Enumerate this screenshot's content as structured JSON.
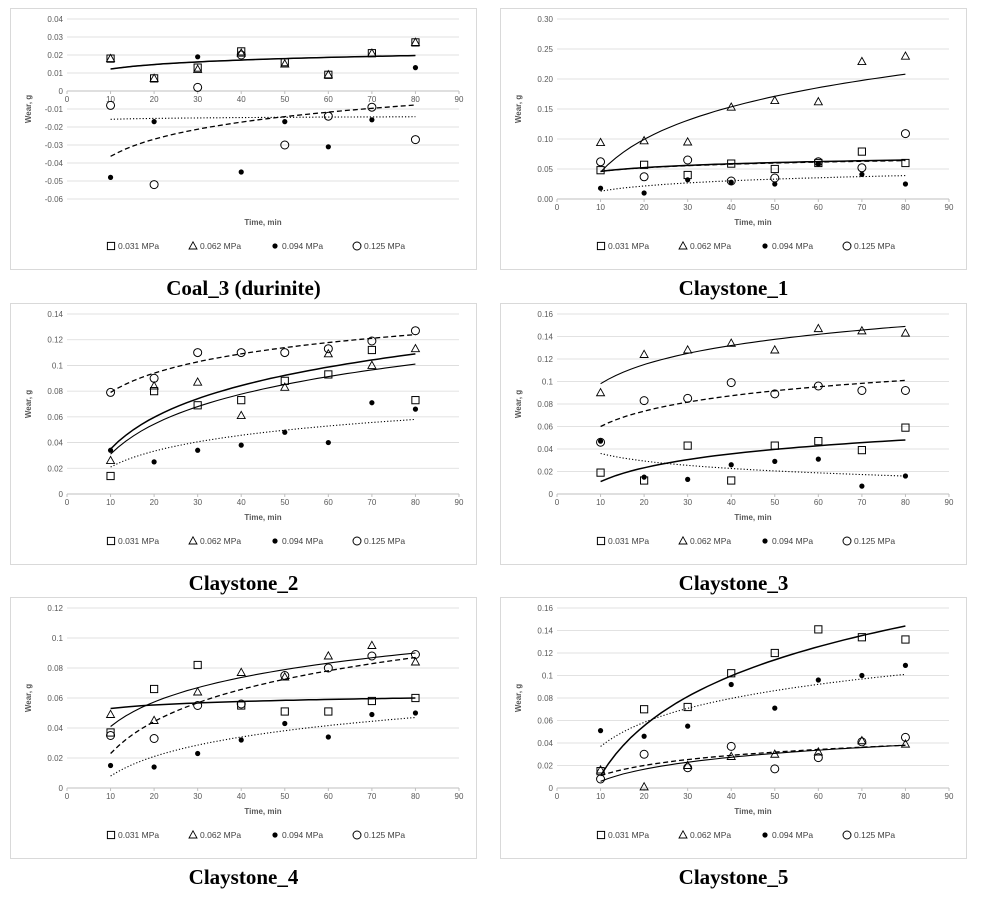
{
  "series_names": [
    "0.031 MPa",
    "0.062 MPa",
    "0.094 MPa",
    "0.125 MPa"
  ],
  "colors": {
    "ink": "#000000",
    "grid": "#d9d9d9",
    "axis": "#bfbfbf",
    "tick": "#595959"
  },
  "chart_data": [
    {
      "type": "scatter",
      "title": "Coal_3 (durinite)",
      "xlabel": "Time, min",
      "ylabel": "Wear, g",
      "xlim": [
        0,
        90
      ],
      "ylim": [
        -0.06,
        0.04
      ],
      "xticks": [
        0,
        10,
        20,
        30,
        40,
        50,
        60,
        70,
        80,
        90
      ],
      "xtick_labels": [
        "0",
        "10",
        "20",
        "30",
        "40",
        "50",
        "60",
        "70",
        "80",
        "90"
      ],
      "yticks": [
        -0.06,
        -0.05,
        -0.04,
        -0.03,
        -0.02,
        -0.01,
        0,
        0.01,
        0.02,
        0.03,
        0.04
      ],
      "ytick_labels": [
        "-0.06",
        "-0.05",
        "-0.04",
        "-0.03",
        "-0.02",
        "-0.01",
        "0",
        "0.01",
        "0.02",
        "0.03",
        "0.04"
      ],
      "x_axis_at": 0,
      "x": [
        10,
        20,
        30,
        40,
        50,
        60,
        70,
        80
      ],
      "series": [
        {
          "name": "0.031 MPa",
          "values": [
            0.018,
            0.007,
            0.013,
            0.022,
            0.016,
            0.009,
            0.021,
            0.027
          ],
          "trend": [
            0.0122,
            0.0197
          ]
        },
        {
          "name": "0.062 MPa",
          "values": [
            0.018,
            0.007,
            0.012,
            0.021,
            0.015,
            0.009,
            0.021,
            0.027
          ],
          "trend": [
            0.0122,
            0.0197
          ]
        },
        {
          "name": "0.094 MPa",
          "values": [
            -0.048,
            -0.017,
            0.019,
            -0.045,
            -0.017,
            -0.031,
            -0.016,
            0.013
          ],
          "trend": [
            -0.0157,
            -0.0143
          ]
        },
        {
          "name": "0.125 MPa",
          "values": [
            -0.008,
            -0.052,
            0.002,
            0.02,
            -0.03,
            -0.014,
            -0.009,
            -0.027
          ],
          "trend": [
            -0.0363,
            -0.0078
          ]
        }
      ]
    },
    {
      "type": "scatter",
      "title": "Claystone_1",
      "xlabel": "Time, min",
      "ylabel": "Wear, g",
      "xlim": [
        0,
        90
      ],
      "ylim": [
        0,
        0.3
      ],
      "xticks": [
        0,
        10,
        20,
        30,
        40,
        50,
        60,
        70,
        80,
        90
      ],
      "xtick_labels": [
        "0",
        "10",
        "20",
        "30",
        "40",
        "50",
        "60",
        "70",
        "80",
        "90"
      ],
      "yticks": [
        0,
        0.05,
        0.1,
        0.15,
        0.2,
        0.25,
        0.3
      ],
      "ytick_labels": [
        "0.00",
        "0.05",
        "0.10",
        "0.15",
        "0.20",
        "0.25",
        "0.30"
      ],
      "x_axis_at": 0,
      "x": [
        10,
        20,
        30,
        40,
        50,
        60,
        70,
        80
      ],
      "series": [
        {
          "name": "0.031 MPa",
          "values": [
            0.048,
            0.057,
            0.04,
            0.059,
            0.05,
            0.06,
            0.079,
            0.06
          ],
          "trend": [
            0.046,
            0.065
          ]
        },
        {
          "name": "0.062 MPa",
          "values": [
            0.094,
            0.097,
            0.095,
            0.153,
            0.164,
            0.162,
            0.229,
            0.238
          ],
          "trend": [
            0.045,
            0.208
          ]
        },
        {
          "name": "0.094 MPa",
          "values": [
            0.018,
            0.01,
            0.032,
            0.028,
            0.025,
            0.059,
            0.041,
            0.025
          ],
          "trend": [
            0.013,
            0.039
          ]
        },
        {
          "name": "0.125 MPa",
          "values": [
            0.062,
            0.037,
            0.065,
            0.03,
            0.035,
            0.062,
            0.052,
            0.109
          ],
          "trend": [
            0.046,
            0.064
          ]
        }
      ]
    },
    {
      "type": "scatter",
      "title": "Claystone_2",
      "xlabel": "Time, min",
      "ylabel": "Wear, g",
      "xlim": [
        0,
        90
      ],
      "ylim": [
        0,
        0.14
      ],
      "xticks": [
        0,
        10,
        20,
        30,
        40,
        50,
        60,
        70,
        80,
        90
      ],
      "xtick_labels": [
        "0",
        "10",
        "20",
        "30",
        "40",
        "50",
        "60",
        "70",
        "80",
        "90"
      ],
      "yticks": [
        0,
        0.02,
        0.04,
        0.06,
        0.08,
        0.1,
        0.12,
        0.14
      ],
      "ytick_labels": [
        "0",
        "0.02",
        "0.04",
        "0.06",
        "0.08",
        "0.1",
        "0.12",
        "0.14"
      ],
      "x_axis_at": 0,
      "x": [
        10,
        20,
        30,
        40,
        50,
        60,
        70,
        80
      ],
      "series": [
        {
          "name": "0.031 MPa",
          "values": [
            0.014,
            0.08,
            0.069,
            0.073,
            0.088,
            0.093,
            0.112,
            0.073
          ],
          "trend": [
            0.035,
            0.109
          ]
        },
        {
          "name": "0.062 MPa",
          "values": [
            0.026,
            0.084,
            0.087,
            0.061,
            0.083,
            0.109,
            0.1,
            0.113
          ],
          "trend": [
            0.031,
            0.101
          ]
        },
        {
          "name": "0.094 MPa",
          "values": [
            0.034,
            0.025,
            0.034,
            0.038,
            0.048,
            0.04,
            0.071,
            0.066
          ],
          "trend": [
            0.021,
            0.058
          ]
        },
        {
          "name": "0.125 MPa",
          "values": [
            0.079,
            0.09,
            0.11,
            0.11,
            0.11,
            0.113,
            0.119,
            0.127
          ],
          "trend": [
            0.079,
            0.124
          ]
        }
      ]
    },
    {
      "type": "scatter",
      "title": "Claystone_3",
      "xlabel": "Time, min",
      "ylabel": "Wear, g",
      "xlim": [
        0,
        90
      ],
      "ylim": [
        0,
        0.16
      ],
      "xticks": [
        0,
        10,
        20,
        30,
        40,
        50,
        60,
        70,
        80,
        90
      ],
      "xtick_labels": [
        "0",
        "10",
        "20",
        "30",
        "40",
        "50",
        "60",
        "70",
        "80",
        "90"
      ],
      "yticks": [
        0,
        0.02,
        0.04,
        0.06,
        0.08,
        0.1,
        0.12,
        0.14,
        0.16
      ],
      "ytick_labels": [
        "0",
        "0.02",
        "0.04",
        "0.06",
        "0.08",
        "0.1",
        "0.12",
        "0.14",
        "0.16"
      ],
      "x_axis_at": 0,
      "x": [
        10,
        20,
        30,
        40,
        50,
        60,
        70,
        80
      ],
      "series": [
        {
          "name": "0.031 MPa",
          "values": [
            0.019,
            0.012,
            0.043,
            0.012,
            0.043,
            0.047,
            0.039,
            0.059
          ],
          "trend": [
            0.011,
            0.048
          ]
        },
        {
          "name": "0.062 MPa",
          "values": [
            0.09,
            0.124,
            0.128,
            0.134,
            0.128,
            0.147,
            0.145,
            0.143
          ],
          "trend": [
            0.098,
            0.149
          ]
        },
        {
          "name": "0.094 MPa",
          "values": [
            0.047,
            0.015,
            0.013,
            0.026,
            0.029,
            0.031,
            0.007,
            0.016
          ],
          "trend": [
            0.036,
            0.016
          ]
        },
        {
          "name": "0.125 MPa",
          "values": [
            0.046,
            0.083,
            0.085,
            0.099,
            0.089,
            0.096,
            0.092,
            0.092
          ],
          "trend": [
            0.06,
            0.101
          ]
        }
      ]
    },
    {
      "type": "scatter",
      "title": "Claystone_4",
      "xlabel": "Time, min",
      "ylabel": "Wear, g",
      "xlim": [
        0,
        90
      ],
      "ylim": [
        0,
        0.12
      ],
      "xticks": [
        0,
        10,
        20,
        30,
        40,
        50,
        60,
        70,
        80,
        90
      ],
      "xtick_labels": [
        "0",
        "10",
        "20",
        "30",
        "40",
        "50",
        "60",
        "70",
        "80",
        "90"
      ],
      "yticks": [
        0,
        0.02,
        0.04,
        0.06,
        0.08,
        0.1,
        0.12
      ],
      "ytick_labels": [
        "0",
        "0.02",
        "0.04",
        "0.06",
        "0.08",
        "0.1",
        "0.12"
      ],
      "x_axis_at": 0,
      "x": [
        10,
        20,
        30,
        40,
        50,
        60,
        70,
        80
      ],
      "series": [
        {
          "name": "0.031 MPa",
          "values": [
            0.037,
            0.066,
            0.082,
            0.055,
            0.051,
            0.051,
            0.058,
            0.06
          ],
          "trend": [
            0.053,
            0.06
          ]
        },
        {
          "name": "0.062 MPa",
          "values": [
            0.049,
            0.045,
            0.064,
            0.077,
            0.074,
            0.088,
            0.095,
            0.084
          ],
          "trend": [
            0.041,
            0.09
          ]
        },
        {
          "name": "0.094 MPa",
          "values": [
            0.015,
            0.014,
            0.023,
            0.032,
            0.043,
            0.034,
            0.049,
            0.05
          ],
          "trend": [
            0.008,
            0.047
          ]
        },
        {
          "name": "0.125 MPa",
          "values": [
            0.035,
            0.033,
            0.055,
            0.056,
            0.075,
            0.08,
            0.088,
            0.089
          ],
          "trend": [
            0.023,
            0.087
          ]
        }
      ]
    },
    {
      "type": "scatter",
      "title": "Claystone_5",
      "xlabel": "Time, min",
      "ylabel": "Wear, g",
      "xlim": [
        0,
        90
      ],
      "ylim": [
        0,
        0.16
      ],
      "xticks": [
        0,
        10,
        20,
        30,
        40,
        50,
        60,
        70,
        80,
        90
      ],
      "xtick_labels": [
        "0",
        "10",
        "20",
        "30",
        "40",
        "50",
        "60",
        "70",
        "80",
        "90"
      ],
      "yticks": [
        0,
        0.02,
        0.04,
        0.06,
        0.08,
        0.1,
        0.12,
        0.14,
        0.16
      ],
      "ytick_labels": [
        "0",
        "0.02",
        "0.04",
        "0.06",
        "0.08",
        "0.1",
        "0.12",
        "0.14",
        "0.16"
      ],
      "x_axis_at": 0,
      "x": [
        10,
        20,
        30,
        40,
        50,
        60,
        70,
        80
      ],
      "series": [
        {
          "name": "0.031 MPa",
          "values": [
            0.015,
            0.07,
            0.072,
            0.102,
            0.12,
            0.141,
            0.134,
            0.132
          ],
          "trend": [
            0.011,
            0.144
          ]
        },
        {
          "name": "0.062 MPa",
          "values": [
            0.016,
            0.001,
            0.02,
            0.028,
            0.03,
            0.032,
            0.042,
            0.039
          ],
          "trend": [
            0.006,
            0.038
          ]
        },
        {
          "name": "0.094 MPa",
          "values": [
            0.051,
            0.046,
            0.055,
            0.092,
            0.071,
            0.096,
            0.1,
            0.109
          ],
          "trend": [
            0.037,
            0.101
          ]
        },
        {
          "name": "0.125 MPa",
          "values": [
            0.008,
            0.03,
            0.018,
            0.037,
            0.017,
            0.027,
            0.041,
            0.045
          ],
          "trend": [
            0.011,
            0.038
          ]
        }
      ]
    }
  ]
}
